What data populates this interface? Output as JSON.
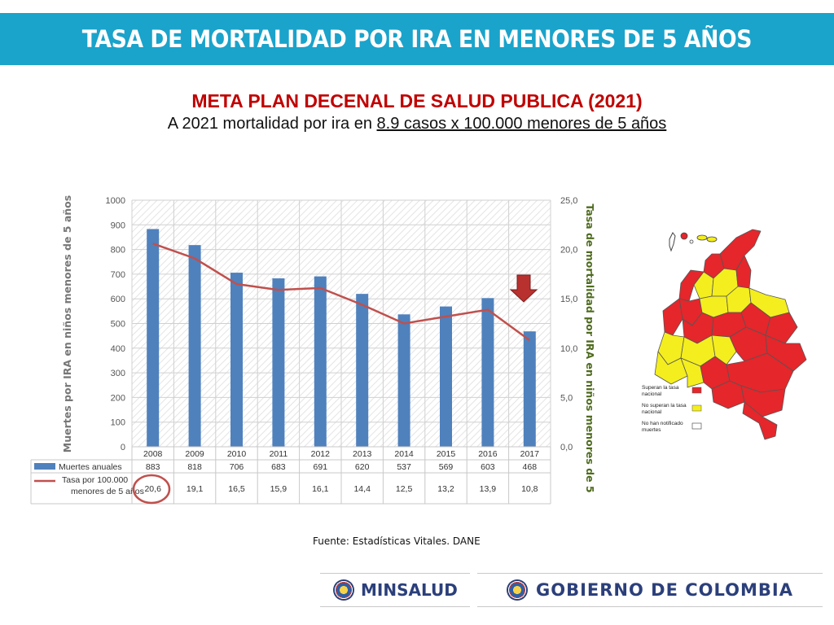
{
  "header": {
    "title": "TASA DE MORTALIDAD POR IRA EN MENORES DE 5 AÑOS",
    "bar_color": "#1aa3cb"
  },
  "meta": {
    "heading": "META PLAN DECENAL DE SALUD PUBLICA (2021)",
    "line_prefix": "A 2021 mortalidad por ira en ",
    "line_underlined": "8.9 casos  x 100.000 menores de 5 años",
    "heading_color": "#c00000"
  },
  "chart_data": {
    "type": "bar",
    "categories": [
      "2008",
      "2009",
      "2010",
      "2011",
      "2012",
      "2013",
      "2014",
      "2015",
      "2016",
      "2017"
    ],
    "series": [
      {
        "name": "Muertes anuales",
        "type": "bar",
        "axis": "left",
        "color": "#4f81bd",
        "values": [
          883,
          818,
          706,
          683,
          691,
          620,
          537,
          569,
          603,
          468
        ]
      },
      {
        "name": "Tasa por 100.000 menores de 5 años",
        "type": "line",
        "axis": "right",
        "color": "#c0504d",
        "values": [
          20.6,
          19.1,
          16.5,
          15.9,
          16.1,
          14.4,
          12.5,
          13.2,
          13.9,
          10.8
        ]
      }
    ],
    "table_values": {
      "bars": [
        "883",
        "818",
        "706",
        "683",
        "691",
        "620",
        "537",
        "569",
        "603",
        "468"
      ],
      "line": [
        "20,6",
        "19,1",
        "16,5",
        "15,9",
        "16,1",
        "14,4",
        "12,5",
        "13,2",
        "13,9",
        "10,8"
      ]
    },
    "ylabel": "Muertes por IRA en niños menores de 5 años",
    "y2label": "Tasa de mortalidad por IRA en niños menores de 5",
    "ylim": [
      0,
      1000
    ],
    "y2lim": [
      0,
      25
    ],
    "yticks": [
      "0",
      "100",
      "200",
      "300",
      "400",
      "500",
      "600",
      "700",
      "800",
      "900",
      "1000"
    ],
    "y2ticks": [
      "0,0",
      "5,0",
      "10,0",
      "15,0",
      "20,0",
      "25,0"
    ],
    "legend_bar_label": "Muertes anuales",
    "legend_line_label_1": "Tasa por 100.000",
    "legend_line_label_2": "menores de 5 años",
    "grid": true,
    "y2label_color": "#4e6b1e",
    "annotations": [
      "red circle around 20,6",
      "down arrow over 2017"
    ]
  },
  "map": {
    "legend": [
      {
        "label_1": "Superan la tasa",
        "label_2": "nacional",
        "color": "#e5262b"
      },
      {
        "label_1": "No superan la tasa",
        "label_2": "nacional",
        "color": "#f4ee1e"
      },
      {
        "label_1": "No han notificado",
        "label_2": "muertes",
        "color": "#ffffff"
      }
    ]
  },
  "source": "Fuente: Estadísticas Vitales. DANE",
  "footer": {
    "minsalud": "MINSALUD",
    "gobierno": "GOBIERNO DE COLOMBIA"
  }
}
